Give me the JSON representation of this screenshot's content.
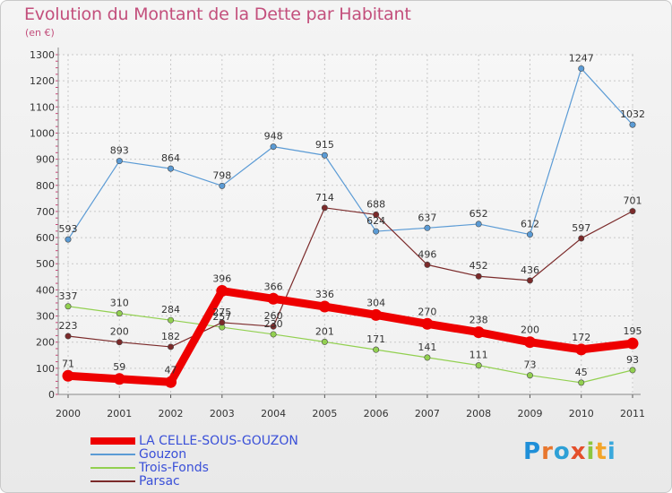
{
  "title": "Evolution du Montant de la Dette par Habitant",
  "subtitle": "(en €)",
  "logo": "Proxiti",
  "chart_data": {
    "type": "line",
    "title": "Evolution du Montant de la Dette par Habitant",
    "ylabel": "(en €)",
    "xlabel": "",
    "ylim": [
      0,
      1300
    ],
    "yticks": [
      0,
      100,
      200,
      300,
      400,
      500,
      600,
      700,
      800,
      900,
      1000,
      1100,
      1200,
      1300
    ],
    "categories": [
      "2000",
      "2001",
      "2002",
      "2003",
      "2004",
      "2005",
      "2006",
      "2007",
      "2008",
      "2009",
      "2010",
      "2011"
    ],
    "grid": true,
    "legend_position": "bottom-left",
    "series": [
      {
        "name": "LA CELLE-SOUS-GOUZON",
        "color": "#ee0000",
        "values": [
          71,
          59,
          47,
          396,
          366,
          336,
          304,
          270,
          238,
          200,
          172,
          195
        ]
      },
      {
        "name": "Gouzon",
        "color": "#5b9bd5",
        "values": [
          593,
          893,
          864,
          798,
          948,
          915,
          624,
          637,
          652,
          612,
          1247,
          1032
        ]
      },
      {
        "name": "Trois-Fonds",
        "color": "#92d050",
        "values": [
          337,
          310,
          284,
          257,
          230,
          201,
          171,
          141,
          111,
          73,
          45,
          93
        ]
      },
      {
        "name": "Parsac",
        "color": "#7b2a2a",
        "values": [
          223,
          200,
          182,
          275,
          260,
          714,
          688,
          496,
          452,
          436,
          597,
          701
        ]
      }
    ]
  }
}
